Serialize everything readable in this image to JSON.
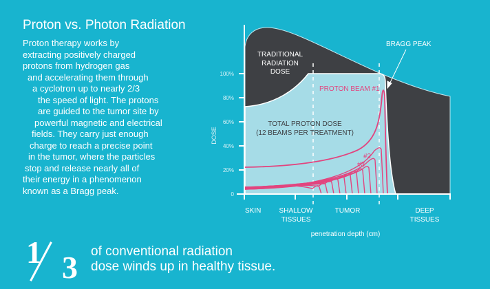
{
  "title": "Proton vs. Photon Radiation",
  "body_lines": [
    "Proton therapy works by",
    "extracting positively charged",
    "protons from hydrogen gas",
    "and accelerating them through",
    "a cyclotron up to nearly 2/3",
    "the speed of light. The protons",
    "are guided to the tumor site by",
    "powerful magnetic and electrical",
    "fields. They carry just enough",
    "charge to reach a precise point",
    "in the tumor, where the particles",
    "stop and release nearly all of",
    "their energy in a phenomenon",
    "known as a Bragg peak."
  ],
  "diagram": {
    "y_label": "DOSE",
    "y_ticks": [
      "0",
      "20%",
      "40%",
      "60%",
      "80%",
      "100%"
    ],
    "x_label": "penetration depth (cm)",
    "regions": [
      {
        "line1": "SKIN",
        "line2": ""
      },
      {
        "line1": "SHALLOW",
        "line2": "TISSUES"
      },
      {
        "line1": "TUMOR",
        "line2": ""
      },
      {
        "line1": "DEEP",
        "line2": "TISSUES"
      }
    ],
    "traditional_label": [
      "TRADITIONAL",
      "RADIATION",
      "DOSE"
    ],
    "total_label": [
      "TOTAL PROTON DOSE",
      "(12 BEAMS PER TREATMENT)"
    ],
    "beam1_label": "PROTON BEAM #1",
    "beam2_label": "#2",
    "beam3_label": "#3",
    "bragg_label": "BRAGG PEAK",
    "colors": {
      "background": "#18b4cf",
      "traditional": "#3e4044",
      "proton": "#a6dce7",
      "beam": "#e2457f"
    }
  },
  "stat": {
    "numerator": "1",
    "denominator": "3",
    "line1": "of conventional radiation",
    "line2": "dose winds up in healthy tissue."
  }
}
